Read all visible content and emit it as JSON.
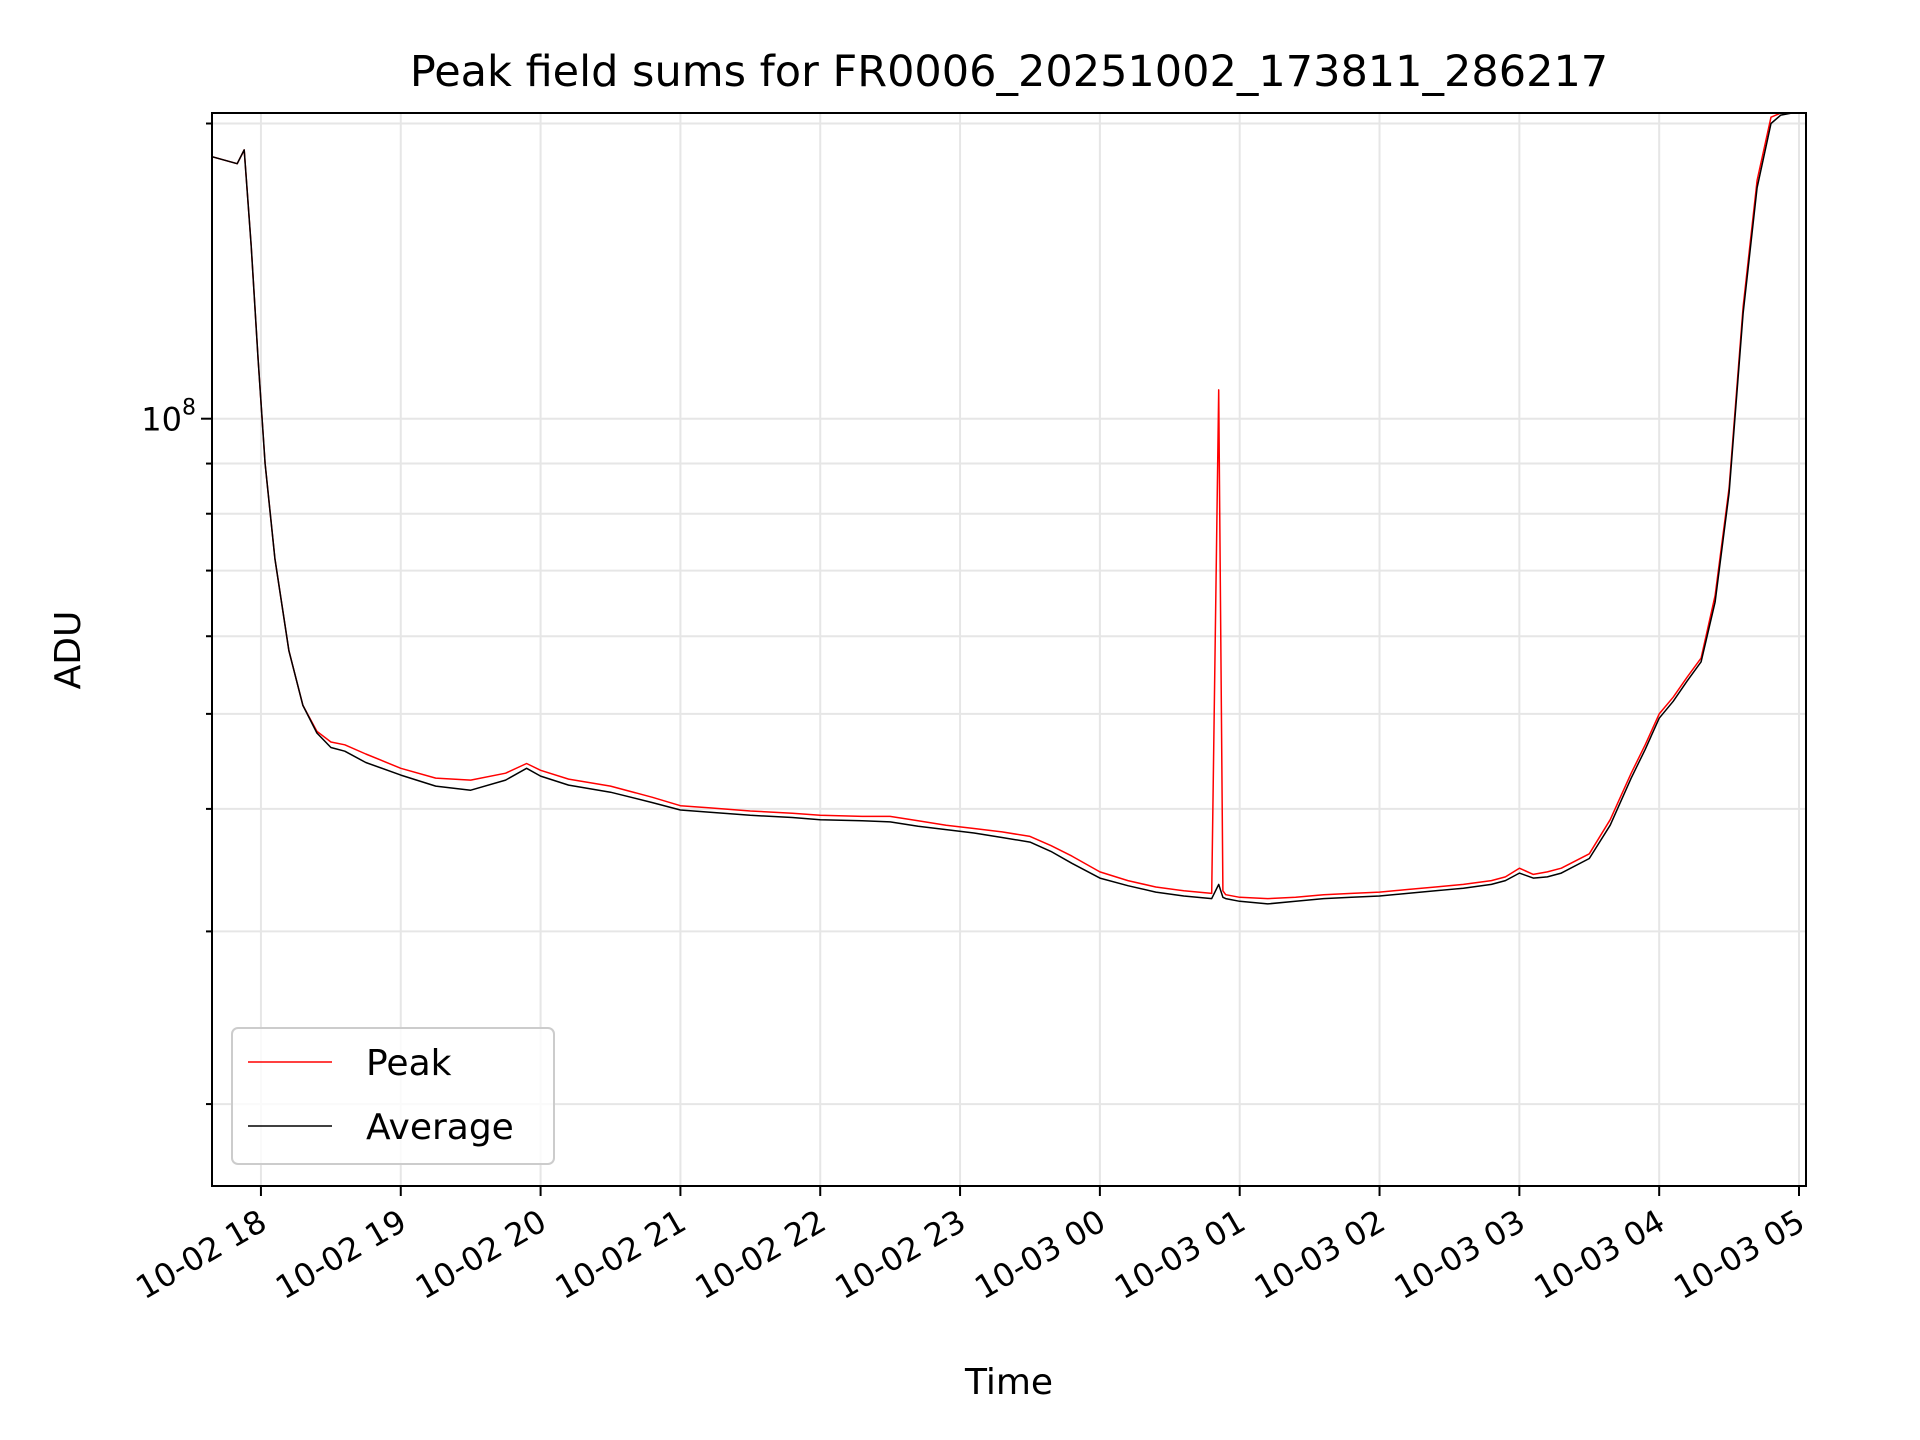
{
  "chart_data": {
    "type": "line",
    "title": "Peak field sums for FR0006_20251002_173811_286217",
    "xlabel": "Time",
    "ylabel": "ADU",
    "yscale": "log",
    "ylim": [
      16500000,
      205000000
    ],
    "xlim": [
      17.65,
      29.05
    ],
    "x_ticks": [
      {
        "value": 18,
        "label": "10-02 18"
      },
      {
        "value": 19,
        "label": "10-02 19"
      },
      {
        "value": 20,
        "label": "10-02 20"
      },
      {
        "value": 21,
        "label": "10-02 21"
      },
      {
        "value": 22,
        "label": "10-02 22"
      },
      {
        "value": 23,
        "label": "10-02 23"
      },
      {
        "value": 24,
        "label": "10-03 00"
      },
      {
        "value": 25,
        "label": "10-03 01"
      },
      {
        "value": 26,
        "label": "10-03 02"
      },
      {
        "value": 27,
        "label": "10-03 03"
      },
      {
        "value": 28,
        "label": "10-03 04"
      },
      {
        "value": 29,
        "label": "10-03 05"
      }
    ],
    "y_major_tick": {
      "value": 100000000,
      "base": "10",
      "exp": "8"
    },
    "y_minor_ticks": [
      20000000,
      30000000,
      40000000,
      50000000,
      60000000,
      70000000,
      80000000,
      90000000,
      200000000
    ],
    "grid": true,
    "legend_position": "lower-left",
    "series": [
      {
        "name": "Peak",
        "color": "#ff0000",
        "x": [
          17.65,
          17.83,
          17.88,
          17.93,
          17.98,
          18.03,
          18.1,
          18.2,
          18.3,
          18.4,
          18.5,
          18.6,
          18.75,
          19.0,
          19.25,
          19.5,
          19.75,
          19.9,
          20.0,
          20.2,
          20.5,
          20.8,
          21.0,
          21.2,
          21.5,
          21.8,
          22.0,
          22.3,
          22.5,
          22.7,
          22.9,
          23.1,
          23.3,
          23.5,
          23.65,
          23.8,
          24.0,
          24.2,
          24.4,
          24.6,
          24.8,
          24.85,
          24.88,
          24.9,
          25.0,
          25.2,
          25.4,
          25.6,
          25.8,
          26.0,
          26.2,
          26.4,
          26.6,
          26.8,
          26.9,
          27.0,
          27.1,
          27.2,
          27.3,
          27.5,
          27.65,
          27.8,
          27.9,
          28.0,
          28.1,
          28.2,
          28.3,
          28.4,
          28.5,
          28.6,
          28.7,
          28.8,
          28.87,
          28.95,
          29.05
        ],
        "values": [
          185000000,
          182000000,
          188000000,
          150000000,
          115000000,
          90000000,
          72000000,
          58000000,
          51000000,
          48000000,
          46800000,
          46500000,
          45500000,
          44000000,
          43000000,
          42800000,
          43500000,
          44500000,
          43800000,
          42900000,
          42200000,
          41100000,
          40300000,
          40100000,
          39800000,
          39600000,
          39400000,
          39300000,
          39300000,
          38900000,
          38500000,
          38200000,
          37900000,
          37500000,
          36700000,
          35800000,
          34500000,
          33800000,
          33300000,
          33000000,
          32800000,
          107000000,
          33000000,
          32700000,
          32500000,
          32400000,
          32500000,
          32700000,
          32800000,
          32900000,
          33100000,
          33300000,
          33500000,
          33800000,
          34100000,
          34800000,
          34300000,
          34500000,
          34800000,
          36000000,
          39000000,
          43500000,
          46500000,
          50000000,
          52000000,
          54500000,
          57000000,
          66000000,
          85000000,
          130000000,
          175000000,
          203000000,
          205000000,
          205000000,
          205000000
        ]
      },
      {
        "name": "Average",
        "color": "#000000",
        "x": [
          17.65,
          17.83,
          17.88,
          17.93,
          17.98,
          18.03,
          18.1,
          18.2,
          18.3,
          18.4,
          18.5,
          18.6,
          18.75,
          19.0,
          19.25,
          19.5,
          19.75,
          19.9,
          20.0,
          20.2,
          20.5,
          20.8,
          21.0,
          21.2,
          21.5,
          21.8,
          22.0,
          22.3,
          22.5,
          22.7,
          22.9,
          23.1,
          23.3,
          23.5,
          23.65,
          23.8,
          24.0,
          24.2,
          24.4,
          24.6,
          24.8,
          24.85,
          24.88,
          24.9,
          25.0,
          25.2,
          25.4,
          25.6,
          25.8,
          26.0,
          26.2,
          26.4,
          26.6,
          26.8,
          26.9,
          27.0,
          27.1,
          27.2,
          27.3,
          27.5,
          27.65,
          27.8,
          27.9,
          28.0,
          28.1,
          28.2,
          28.3,
          28.4,
          28.5,
          28.6,
          28.7,
          28.8,
          28.87,
          28.95,
          29.05
        ],
        "values": [
          185000000,
          182000000,
          188000000,
          150000000,
          115000000,
          90000000,
          72000000,
          58000000,
          51000000,
          47800000,
          46200000,
          45800000,
          44600000,
          43300000,
          42200000,
          41800000,
          42800000,
          44000000,
          43200000,
          42300000,
          41600000,
          40600000,
          39900000,
          39700000,
          39400000,
          39200000,
          39000000,
          38900000,
          38800000,
          38400000,
          38100000,
          37800000,
          37400000,
          37000000,
          36200000,
          35200000,
          34000000,
          33400000,
          32900000,
          32600000,
          32400000,
          33500000,
          32500000,
          32400000,
          32200000,
          32000000,
          32200000,
          32400000,
          32500000,
          32600000,
          32800000,
          33000000,
          33200000,
          33500000,
          33800000,
          34400000,
          34000000,
          34100000,
          34400000,
          35600000,
          38500000,
          43000000,
          46000000,
          49500000,
          51500000,
          54000000,
          56500000,
          65000000,
          84000000,
          128000000,
          172000000,
          200000000,
          204000000,
          205000000,
          205000000
        ]
      }
    ]
  }
}
